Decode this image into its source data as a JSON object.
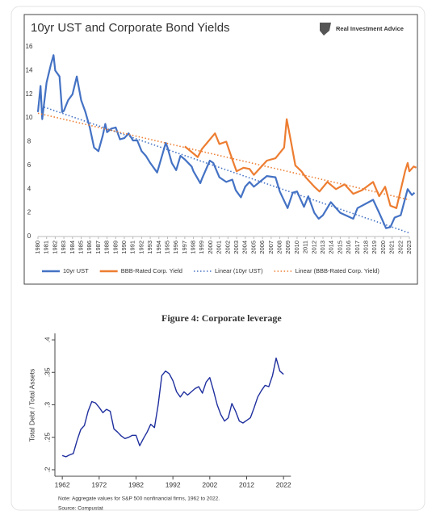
{
  "chart_data": [
    {
      "type": "line",
      "title": "10yr UST and Corporate Bond Yields",
      "source_logo": "Real Investment Advice",
      "xlim": [
        1980,
        2023
      ],
      "ylim": [
        0,
        16
      ],
      "yticks": [
        0,
        2,
        4,
        6,
        8,
        10,
        12,
        14,
        16
      ],
      "xticks": [
        1980,
        1981,
        1982,
        1983,
        1984,
        1985,
        1986,
        1987,
        1988,
        1989,
        1990,
        1991,
        1992,
        1993,
        1994,
        1995,
        1996,
        1997,
        1998,
        1999,
        2000,
        2001,
        2002,
        2003,
        2004,
        2005,
        2006,
        2007,
        2008,
        2009,
        2010,
        2011,
        2012,
        2013,
        2014,
        2015,
        2016,
        2017,
        2018,
        2019,
        2020,
        2021,
        2022,
        2023
      ],
      "series": [
        {
          "name": "10yr UST",
          "color": "#4472c4",
          "dash": "solid",
          "x": [
            1980,
            1980.3,
            1980.5,
            1981,
            1981.5,
            1981.8,
            1982,
            1982.5,
            1982.8,
            1983,
            1983.5,
            1984,
            1984.5,
            1985,
            1985.5,
            1986,
            1986.5,
            1987,
            1987.5,
            1987.8,
            1988,
            1988.5,
            1989,
            1989.5,
            1990,
            1990.5,
            1991,
            1991.5,
            1992,
            1992.5,
            1993,
            1993.8,
            1994,
            1994.8,
            1995,
            1995.5,
            1996,
            1996.5,
            1997,
            1997.8,
            1998,
            1998.8,
            1999,
            1999.9,
            2000.3,
            2001,
            2001.8,
            2002.5,
            2002.9,
            2003.5,
            2004,
            2004.5,
            2005,
            2006.5,
            2007.5,
            2008,
            2008.9,
            2009.5,
            2010,
            2010.8,
            2011.3,
            2012,
            2012.5,
            2013,
            2013.9,
            2015,
            2016.5,
            2017,
            2018.8,
            2019.5,
            2020.3,
            2020.8,
            2021.3,
            2022,
            2022.8,
            2023.3,
            2023.6
          ],
          "values": [
            10.5,
            12.7,
            9.9,
            13,
            14.5,
            15.3,
            14,
            13.5,
            10.5,
            10.6,
            11.5,
            12,
            13.5,
            11.5,
            10.5,
            9.2,
            7.5,
            7.2,
            8.5,
            9.5,
            8.8,
            9.1,
            9.2,
            8.2,
            8.3,
            8.7,
            8.1,
            8.1,
            7.2,
            6.8,
            6.2,
            5.4,
            5.9,
            7.9,
            7.5,
            6.2,
            5.6,
            6.8,
            6.5,
            5.9,
            5.5,
            4.5,
            4.9,
            6.4,
            6.2,
            5,
            4.6,
            4.8,
            3.9,
            3.3,
            4.2,
            4.6,
            4.2,
            5.1,
            5,
            3.8,
            2.4,
            3.7,
            3.8,
            2.5,
            3.4,
            2,
            1.5,
            1.8,
            2.9,
            2,
            1.5,
            2.4,
            3.1,
            2,
            0.7,
            0.8,
            1.6,
            1.8,
            4,
            3.5,
            3.7
          ]
        },
        {
          "name": "BBB-Rated Corp. Yield",
          "color": "#ed7d31",
          "dash": "solid",
          "x": [
            1997,
            1998.5,
            1999,
            2000.5,
            2001,
            2001.8,
            2002.5,
            2003,
            2003.8,
            2004.5,
            2005,
            2006.5,
            2007.5,
            2008.5,
            2008.8,
            2009.3,
            2009.8,
            2010.5,
            2011,
            2012,
            2012.6,
            2013.5,
            2014.5,
            2015.5,
            2016.5,
            2017.5,
            2018.8,
            2019.5,
            2020.2,
            2020.8,
            2021.5,
            2022.5,
            2022.8,
            2023,
            2023.5,
            2023.8
          ],
          "values": [
            7.6,
            6.7,
            7.4,
            8.7,
            7.8,
            8,
            6.5,
            5.5,
            5.8,
            5.7,
            5.2,
            6.4,
            6.6,
            7.5,
            9.9,
            8,
            6,
            5.5,
            5,
            4.2,
            3.8,
            4.6,
            4,
            4.4,
            3.6,
            3.9,
            4.6,
            3.4,
            4.2,
            2.6,
            2.4,
            5.5,
            6.2,
            5.5,
            5.9,
            5.8
          ]
        },
        {
          "name": "Linear (10yr UST)",
          "color": "#4472c4",
          "dash": "dotted",
          "x": [
            1980,
            2023
          ],
          "values": [
            11.1,
            0.3
          ]
        },
        {
          "name": "Linear (BBB-Rated Corp. Yield)",
          "color": "#ed7d31",
          "dash": "dotted",
          "x": [
            1980,
            2023
          ],
          "values": [
            10.4,
            3.1
          ]
        }
      ]
    },
    {
      "type": "line",
      "title": "Figure 4: Corporate leverage",
      "y_label": "Total Debt / Total Assets",
      "notes": [
        "Note: Aggregate values for S&P 500 nonfinancial firms, 1962 to 2022.",
        "Source: Compustat"
      ],
      "xlim": [
        1960,
        2024
      ],
      "ylim": [
        0.19,
        0.41
      ],
      "xticks": [
        1962,
        1972,
        1982,
        1992,
        2002,
        2012,
        2022
      ],
      "yticks": [
        {
          "value": 0.2,
          "label": ".2"
        },
        {
          "value": 0.25,
          "label": ".25"
        },
        {
          "value": 0.3,
          "label": ".3"
        },
        {
          "value": 0.35,
          "label": ".35"
        },
        {
          "value": 0.4,
          "label": ".4"
        }
      ],
      "series": [
        {
          "color": "#1f2f9e",
          "dash": "solid",
          "x": [
            1962,
            1963,
            1964,
            1965,
            1966,
            1967,
            1968,
            1969,
            1970,
            1971,
            1972,
            1973,
            1974,
            1975,
            1976,
            1977,
            1978,
            1979,
            1980,
            1981,
            1982,
            1983,
            1984,
            1985,
            1986,
            1987,
            1988,
            1989,
            1990,
            1991,
            1992,
            1993,
            1994,
            1995,
            1996,
            1997,
            1998,
            1999,
            2000,
            2001,
            2002,
            2003,
            2004,
            2005,
            2006,
            2007,
            2008,
            2009,
            2010,
            2011,
            2012,
            2013,
            2014,
            2015,
            2016,
            2017,
            2018,
            2019,
            2020,
            2021,
            2022
          ],
          "values": [
            0.222,
            0.22,
            0.223,
            0.225,
            0.245,
            0.262,
            0.268,
            0.29,
            0.305,
            0.303,
            0.296,
            0.288,
            0.293,
            0.29,
            0.263,
            0.258,
            0.252,
            0.248,
            0.25,
            0.253,
            0.253,
            0.237,
            0.248,
            0.258,
            0.27,
            0.265,
            0.3,
            0.345,
            0.352,
            0.348,
            0.337,
            0.32,
            0.312,
            0.32,
            0.315,
            0.32,
            0.325,
            0.328,
            0.318,
            0.335,
            0.342,
            0.322,
            0.3,
            0.285,
            0.275,
            0.28,
            0.302,
            0.29,
            0.275,
            0.272,
            0.276,
            0.28,
            0.295,
            0.312,
            0.322,
            0.33,
            0.328,
            0.345,
            0.372,
            0.352,
            0.347
          ]
        }
      ]
    }
  ]
}
